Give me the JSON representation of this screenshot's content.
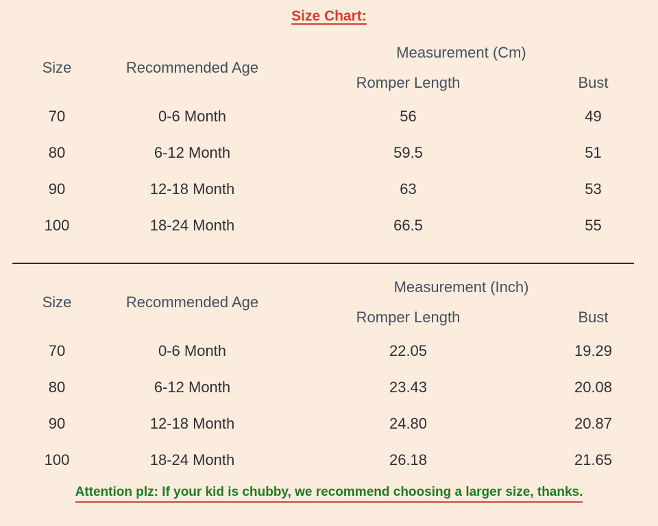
{
  "title": "Size Chart:",
  "attention": "Attention plz: If your kid is chubby, we recommend choosing a larger size, thanks.",
  "colors": {
    "background": "#fcecdd",
    "title_text": "#d63c2f",
    "header_text": "#425060",
    "data_text": "#2f2f36",
    "attention_text": "#217a21",
    "attention_underline": "#c44b41",
    "divider": "#2f2f2f"
  },
  "chart_data": [
    {
      "type": "table",
      "title": "Size Chart:",
      "measurement_label": "Measurement (Cm)",
      "headers": {
        "size": "Size",
        "age": "Recommended Age",
        "length": "Romper Length",
        "bust": "Bust"
      },
      "rows": [
        {
          "size": "70",
          "age": "0-6 Month",
          "length": "56",
          "bust": "49"
        },
        {
          "size": "80",
          "age": "6-12 Month",
          "length": "59.5",
          "bust": "51"
        },
        {
          "size": "90",
          "age": "12-18 Month",
          "length": "63",
          "bust": "53"
        },
        {
          "size": "100",
          "age": "18-24 Month",
          "length": "66.5",
          "bust": "55"
        }
      ]
    },
    {
      "type": "table",
      "measurement_label": "Measurement (Inch)",
      "headers": {
        "size": "Size",
        "age": "Recommended Age",
        "length": "Romper Length",
        "bust": "Bust"
      },
      "rows": [
        {
          "size": "70",
          "age": "0-6 Month",
          "length": "22.05",
          "bust": "19.29"
        },
        {
          "size": "80",
          "age": "6-12 Month",
          "length": "23.43",
          "bust": "20.08"
        },
        {
          "size": "90",
          "age": "12-18 Month",
          "length": "24.80",
          "bust": "20.87"
        },
        {
          "size": "100",
          "age": "18-24 Month",
          "length": "26.18",
          "bust": "21.65"
        }
      ]
    }
  ]
}
